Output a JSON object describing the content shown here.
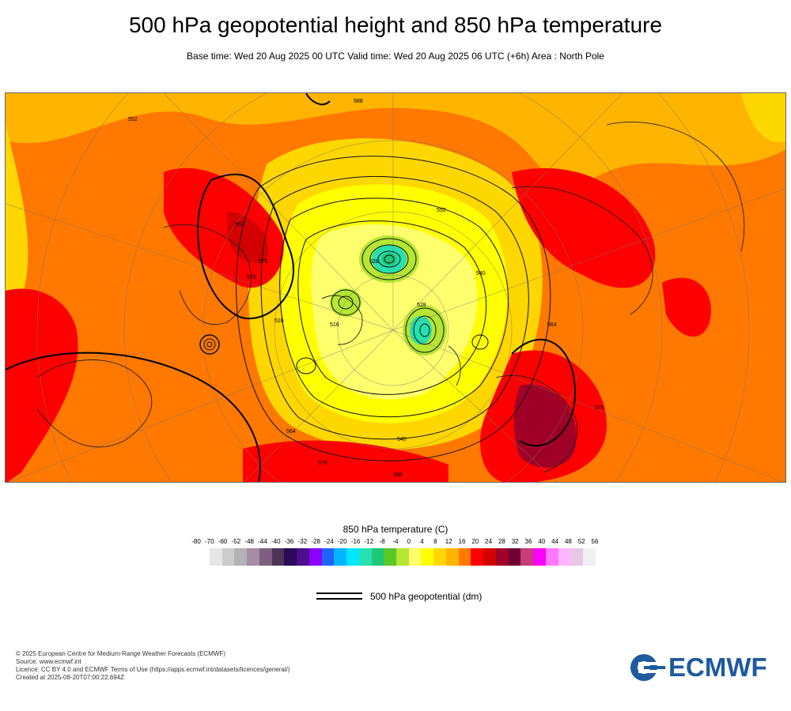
{
  "header": {
    "title": "500 hPa geopotential height and 850 hPa temperature",
    "subtitle": "Base time: Wed 20 Aug 2025 00 UTC Valid time: Wed 20 Aug 2025 06 UTC (+6h) Area : North Pole"
  },
  "map": {
    "area": "North Pole",
    "contour_labels": [
      "552",
      "552",
      "576",
      "576",
      "588",
      "552",
      "528",
      "528",
      "516",
      "516",
      "540",
      "540",
      "564",
      "564",
      "576",
      "576",
      "588"
    ]
  },
  "temperature_legend": {
    "title": "850 hPa temperature (C)",
    "ticks": [
      "-80",
      "-70",
      "-60",
      "-52",
      "-48",
      "-44",
      "-40",
      "-36",
      "-32",
      "-28",
      "-24",
      "-20",
      "-16",
      "-12",
      "-8",
      "-4",
      "0",
      "4",
      "8",
      "12",
      "16",
      "20",
      "24",
      "28",
      "32",
      "36",
      "40",
      "44",
      "48",
      "52",
      "56"
    ],
    "colors": [
      "#e6e6e6",
      "#cccccc",
      "#b3b3b3",
      "#a68ca6",
      "#7f5f80",
      "#4d3556",
      "#2b0a57",
      "#4b0f8f",
      "#8b00ff",
      "#1e64ff",
      "#00b4ff",
      "#00e6ff",
      "#26e0b0",
      "#1ec87a",
      "#5ac828",
      "#b4e632",
      "#ffff6e",
      "#ffff00",
      "#ffd700",
      "#ffb400",
      "#ff7800",
      "#ff0000",
      "#d20000",
      "#a00028",
      "#6e0032",
      "#c83c78",
      "#ff00ff",
      "#ff78ff",
      "#ffb4ff",
      "#e6c8e6",
      "#f0f0f0"
    ]
  },
  "geopotential_legend": {
    "label": "500 hPa geopotential (dm)"
  },
  "credits": {
    "copyright": "© 2025 European Centre for Medium-Range Weather Forecasts (ECMWF)",
    "source": "Source: www.ecmwf.int",
    "licence": "Licence: CC BY 4.0 and ECMWF Terms of Use (https://apps.ecmwf.int/datasets/licences/general/)",
    "created": "Created at 2025-08-20T07:00:22.694Z"
  },
  "logo": {
    "text": "ECMWF",
    "color": "#1e5a9e"
  }
}
